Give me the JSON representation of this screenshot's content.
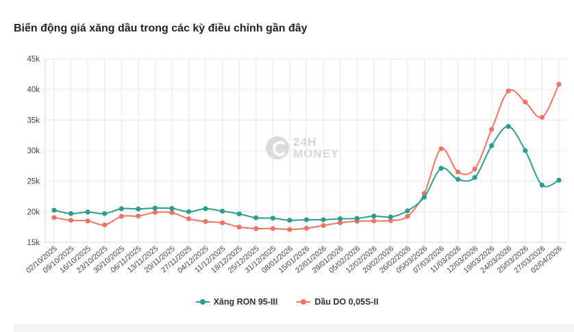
{
  "title": "Biến động giá xăng dầu trong các kỳ điều chỉnh gần đây",
  "watermark": {
    "line1": "24H",
    "line2": "MONEY"
  },
  "colors": {
    "ron95": "#2a9d8f",
    "do005": "#ef7461",
    "grid": "#e6e6e6",
    "axis_text": "#444444"
  },
  "chart_data": {
    "type": "line",
    "title": "Biến động giá xăng dầu trong các kỳ điều chỉnh gần đây",
    "xlabel": "",
    "ylabel": "",
    "ylim": [
      15000,
      45000
    ],
    "yticks": [
      15000,
      20000,
      25000,
      30000,
      35000,
      40000,
      45000
    ],
    "ytick_labels": [
      "15k",
      "20k",
      "25k",
      "30k",
      "35k",
      "40k",
      "45k"
    ],
    "grid": true,
    "legend_position": "bottom",
    "categories": [
      "02/10/2025",
      "09/10/2025",
      "16/10/2025",
      "23/10/2025",
      "30/10/2025",
      "06/11/2025",
      "13/11/2025",
      "20/11/2025",
      "27/11/2025",
      "04/12/2025",
      "11/12/2025",
      "18/12/2025",
      "25/12/2025",
      "31/12/2025",
      "08/01/2026",
      "15/01/2026",
      "22/01/2026",
      "29/01/2026",
      "05/02/2026",
      "12/02/2026",
      "20/02/2026",
      "26/02/2026",
      "05/03/2026",
      "07/03/2026",
      "11/03/2026",
      "12/03/2026",
      "19/03/2026",
      "24/03/2026",
      "25/03/2026",
      "27/03/2026",
      "02/04/2026"
    ],
    "series": [
      {
        "name": "Xăng RON 95-III",
        "color": "#2a9d8f",
        "values": [
          20250,
          19700,
          19950,
          19700,
          20500,
          20450,
          20600,
          20550,
          20000,
          20500,
          20100,
          19650,
          19000,
          18950,
          18600,
          18700,
          18700,
          18850,
          18900,
          19300,
          19150,
          20150,
          22400,
          27100,
          25300,
          25600,
          30800,
          33950,
          30000,
          24350,
          25150
        ]
      },
      {
        "name": "Dầu DO 0,05S-II",
        "color": "#ef7461",
        "values": [
          19050,
          18600,
          18500,
          17850,
          19250,
          19300,
          19900,
          19850,
          18850,
          18400,
          18200,
          17500,
          17250,
          17250,
          17100,
          17300,
          17750,
          18200,
          18450,
          18500,
          18550,
          19250,
          23000,
          30300,
          26500,
          27000,
          33450,
          39750,
          37950,
          35450,
          40850
        ]
      }
    ]
  }
}
